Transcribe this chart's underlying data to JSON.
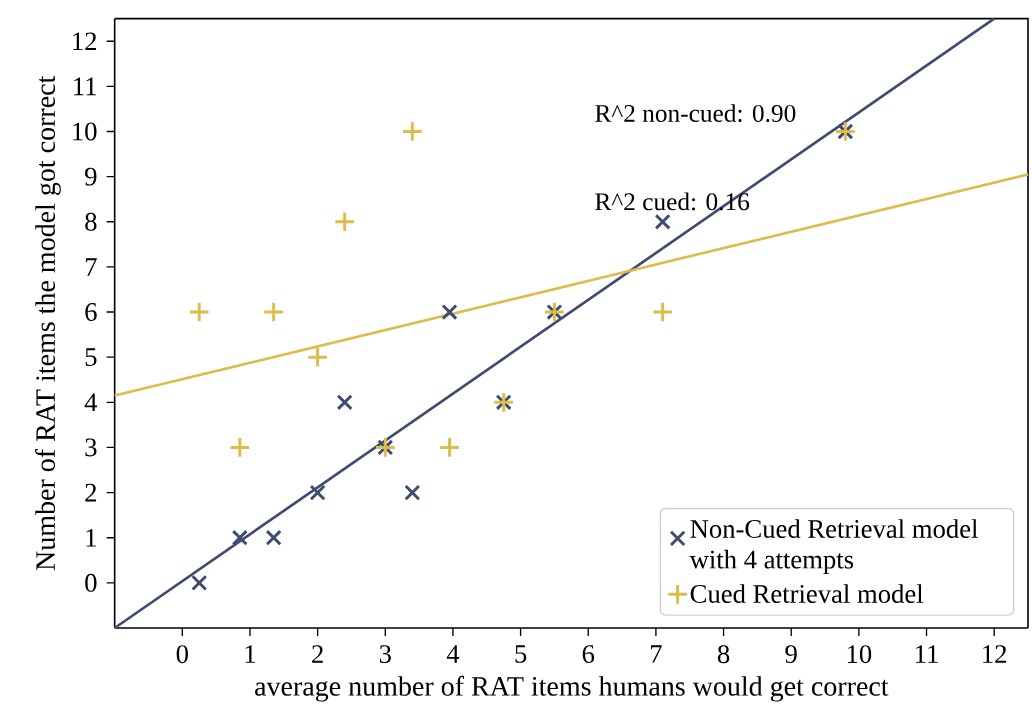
{
  "chart_data": {
    "type": "scatter",
    "xlabel": "average number of RAT items humans would get correct",
    "ylabel": "Number of RAT items the model got correct",
    "x": [
      0.25,
      0.85,
      1.35,
      2.0,
      2.4,
      3.0,
      3.4,
      3.95,
      4.75,
      5.5,
      7.1,
      9.8
    ],
    "series": [
      {
        "name": "Non-Cued Retrieval model with 4 attempts",
        "color": "#3f4b6f",
        "marker": "cross",
        "values": [
          0,
          1,
          1,
          2,
          4,
          3,
          2,
          6,
          4,
          6,
          8,
          10
        ]
      },
      {
        "name": "Cued Retrieval model",
        "color": "#dcbd4c",
        "marker": "plus",
        "values": [
          6,
          3,
          6,
          5,
          8,
          3,
          10,
          3,
          4,
          6,
          6,
          10
        ]
      },
      {
        "type": "line",
        "color": "#3f4b6f",
        "x": [
          -1,
          12
        ],
        "values": [
          -1,
          12.5
        ]
      },
      {
        "type": "line",
        "color": "#dcbd4c",
        "x": [
          -1,
          12.5
        ],
        "values": [
          4.15,
          9.05
        ]
      }
    ],
    "xlim": [
      -1,
      12.5
    ],
    "ylim": [
      -1,
      12.5
    ],
    "xticks": [
      0,
      1,
      2,
      3,
      4,
      5,
      6,
      7,
      8,
      9,
      10,
      11,
      12
    ],
    "yticks": [
      0,
      1,
      2,
      3,
      4,
      5,
      6,
      7,
      8,
      9,
      10,
      11,
      12
    ],
    "annotations": [
      "R^2 non-cued: 0.90",
      "R^2 cued: 0.16"
    ],
    "grid": false,
    "legend": "bottom right"
  }
}
